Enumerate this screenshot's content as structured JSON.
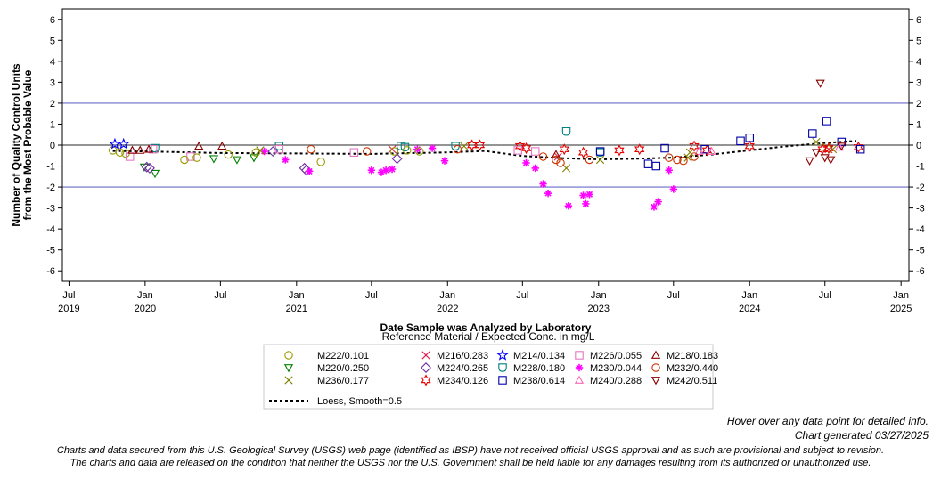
{
  "chart_data": {
    "type": "scatter",
    "xlabel": "Date Sample was Analyzed by Laboratory",
    "ylabel_lines": [
      "Number of Quality Control Units",
      "from the Most Probable Value"
    ],
    "ylim": [
      -6.5,
      6.5
    ],
    "xlim": [
      "2019-06-15",
      "2025-01-20"
    ],
    "yticks": [
      6,
      5,
      4,
      3,
      2,
      1,
      0,
      -1,
      -2,
      -3,
      -4,
      -5,
      -6
    ],
    "xticks": [
      {
        "date": "2019-07-01",
        "line1": "Jul",
        "line2": "2019"
      },
      {
        "date": "2020-01-01",
        "line1": "Jan",
        "line2": "2020"
      },
      {
        "date": "2020-07-01",
        "line1": "Jul",
        "line2": ""
      },
      {
        "date": "2021-01-01",
        "line1": "Jan",
        "line2": "2021"
      },
      {
        "date": "2021-07-01",
        "line1": "Jul",
        "line2": ""
      },
      {
        "date": "2022-01-01",
        "line1": "Jan",
        "line2": "2022"
      },
      {
        "date": "2022-07-01",
        "line1": "Jul",
        "line2": ""
      },
      {
        "date": "2023-01-01",
        "line1": "Jan",
        "line2": "2023"
      },
      {
        "date": "2023-07-01",
        "line1": "Jul",
        "line2": ""
      },
      {
        "date": "2024-01-01",
        "line1": "Jan",
        "line2": "2024"
      },
      {
        "date": "2024-07-01",
        "line1": "Jul",
        "line2": ""
      },
      {
        "date": "2025-01-01",
        "line1": "Jan",
        "line2": "2025"
      }
    ],
    "reference_lines": [
      2,
      0,
      -2
    ],
    "legend_title": "Reference Material / Expected Conc. in mg/L",
    "series": [
      {
        "name": "M222/0.101",
        "marker": "circle",
        "color": "#9a9a00",
        "points": [
          [
            "2019-10-15",
            -0.25
          ],
          [
            "2019-11-01",
            -0.35
          ],
          [
            "2019-11-15",
            -0.4
          ]
        ]
      },
      {
        "name": "M220/0.250",
        "marker": "triangle-down",
        "color": "#008000",
        "points": [
          [
            "2019-12-30",
            -1.05
          ],
          [
            "2020-01-25",
            -1.35
          ],
          [
            "2020-06-15",
            -0.65
          ],
          [
            "2020-08-10",
            -0.7
          ],
          [
            "2020-09-20",
            -0.6
          ]
        ]
      },
      {
        "name": "M236/0.177",
        "marker": "x",
        "color": "#808000",
        "points": [
          [
            "2022-10-15",
            -1.1
          ],
          [
            "2023-01-05",
            -0.7
          ],
          [
            "2023-08-05",
            -0.6
          ],
          [
            "2024-06-10",
            0.15
          ],
          [
            "2024-07-05",
            -0.1
          ]
        ]
      },
      {
        "name": "M216/0.283",
        "marker": "x",
        "color": "#e6194b",
        "points": [
          [
            "2021-08-20",
            -0.2
          ],
          [
            "2022-09-25",
            -0.55
          ],
          [
            "2024-07-10",
            -0.2
          ]
        ]
      },
      {
        "name": "M224/0.265",
        "marker": "diamond",
        "color": "#7030a0",
        "points": [
          [
            "2020-01-05",
            -1.05
          ],
          [
            "2020-01-12",
            -1.1
          ],
          [
            "2020-11-05",
            -0.3
          ],
          [
            "2021-01-20",
            -1.1
          ],
          [
            "2021-01-25",
            -1.2
          ],
          [
            "2021-09-01",
            -0.65
          ]
        ]
      },
      {
        "name": "M234/0.126",
        "marker": "star6",
        "color": "#e60000",
        "points": [
          [
            "2022-03-01",
            0.0
          ],
          [
            "2022-03-20",
            0.0
          ],
          [
            "2022-06-25",
            -0.05
          ],
          [
            "2022-07-10",
            -0.15
          ],
          [
            "2022-10-10",
            -0.2
          ],
          [
            "2022-11-25",
            -0.35
          ],
          [
            "2023-02-20",
            -0.25
          ],
          [
            "2023-04-10",
            -0.2
          ],
          [
            "2023-08-20",
            -0.05
          ],
          [
            "2023-09-20",
            -0.25
          ],
          [
            "2024-01-01",
            -0.05
          ],
          [
            "2024-06-25",
            -0.2
          ],
          [
            "2024-07-10",
            -0.15
          ],
          [
            "2024-09-20",
            -0.1
          ]
        ]
      },
      {
        "name": "M214/0.134",
        "marker": "star5",
        "color": "#0000ff",
        "points": [
          [
            "2019-10-20",
            0.05
          ],
          [
            "2019-11-10",
            0.05
          ]
        ]
      },
      {
        "name": "M228/0.180",
        "marker": "shield",
        "color": "#008080",
        "points": [
          [
            "2020-01-25",
            -0.15
          ],
          [
            "2020-11-20",
            -0.05
          ],
          [
            "2021-09-10",
            -0.05
          ],
          [
            "2021-09-20",
            -0.1
          ],
          [
            "2022-01-20",
            -0.05
          ],
          [
            "2022-10-15",
            0.65
          ],
          [
            "2023-01-05",
            -0.35
          ]
        ]
      },
      {
        "name": "M238/0.614",
        "marker": "square",
        "color": "#0000aa",
        "points": [
          [
            "2023-01-05",
            -0.3
          ],
          [
            "2023-05-01",
            -0.9
          ],
          [
            "2023-05-20",
            -1.0
          ],
          [
            "2023-06-10",
            -0.15
          ],
          [
            "2023-09-15",
            -0.2
          ],
          [
            "2023-12-10",
            0.2
          ],
          [
            "2024-01-01",
            0.35
          ],
          [
            "2024-06-01",
            0.55
          ],
          [
            "2024-07-05",
            1.15
          ],
          [
            "2024-08-10",
            0.15
          ],
          [
            "2024-09-25",
            -0.2
          ]
        ]
      },
      {
        "name": "M226/0.055",
        "marker": "square",
        "color": "#e377c2",
        "points": [
          [
            "2019-11-25",
            -0.55
          ],
          [
            "2020-01-20",
            -0.2
          ],
          [
            "2020-04-20",
            -0.55
          ],
          [
            "2020-11-20",
            -0.2
          ],
          [
            "2021-05-20",
            -0.35
          ],
          [
            "2022-06-20",
            -0.25
          ],
          [
            "2022-08-01",
            -0.3
          ]
        ]
      },
      {
        "name": "M230/0.044",
        "marker": "asterisk",
        "color": "#ff00ff",
        "points": [
          [
            "2020-10-15",
            -0.3
          ],
          [
            "2020-12-05",
            -0.7
          ],
          [
            "2021-02-01",
            -1.25
          ],
          [
            "2021-07-01",
            -1.2
          ],
          [
            "2021-07-25",
            -1.3
          ],
          [
            "2021-08-05",
            -1.2
          ],
          [
            "2021-08-20",
            -1.15
          ],
          [
            "2021-10-20",
            -0.2
          ],
          [
            "2021-11-25",
            -0.15
          ],
          [
            "2021-12-25",
            -0.75
          ],
          [
            "2022-07-10",
            -0.85
          ],
          [
            "2022-08-01",
            -1.1
          ],
          [
            "2022-08-20",
            -1.85
          ],
          [
            "2022-09-01",
            -2.3
          ],
          [
            "2022-10-20",
            -2.9
          ],
          [
            "2022-11-25",
            -2.4
          ],
          [
            "2022-12-01",
            -2.8
          ],
          [
            "2022-12-10",
            -2.35
          ],
          [
            "2023-05-15",
            -2.95
          ],
          [
            "2023-05-25",
            -2.7
          ],
          [
            "2023-06-20",
            -1.2
          ],
          [
            "2023-07-01",
            -2.1
          ]
        ]
      },
      {
        "name": "M240/0.288",
        "marker": "triangle",
        "color": "#ff69b4",
        "points": [
          [
            "2023-09-01",
            -0.3
          ],
          [
            "2023-10-01",
            -0.3
          ],
          [
            "2024-08-05",
            -0.1
          ]
        ]
      },
      {
        "name": "M218/0.183",
        "marker": "triangle",
        "color": "#8b0000",
        "points": [
          [
            "2019-12-01",
            -0.25
          ],
          [
            "2019-12-20",
            -0.25
          ],
          [
            "2020-01-10",
            -0.2
          ],
          [
            "2020-05-10",
            -0.05
          ],
          [
            "2020-07-05",
            -0.05
          ],
          [
            "2022-09-20",
            -0.45
          ]
        ]
      },
      {
        "name": "M232/0.440",
        "marker": "circle",
        "color": "#cc3300",
        "points": [
          [
            "2022-08-20",
            -0.55
          ],
          [
            "2022-09-20",
            -0.7
          ],
          [
            "2022-10-01",
            -0.85
          ],
          [
            "2022-12-10",
            -0.7
          ],
          [
            "2023-06-20",
            -0.6
          ],
          [
            "2023-07-10",
            -0.7
          ],
          [
            "2023-07-25",
            -0.75
          ],
          [
            "2023-08-20",
            -0.55
          ]
        ]
      },
      {
        "name": "M242/0.511",
        "marker": "triangle-down",
        "color": "#8b0000",
        "points": [
          [
            "2024-05-25",
            -0.75
          ],
          [
            "2024-06-10",
            -0.35
          ],
          [
            "2024-06-20",
            2.95
          ],
          [
            "2024-07-01",
            -0.6
          ],
          [
            "2024-07-15",
            -0.7
          ],
          [
            "2024-08-10",
            -0.05
          ]
        ]
      }
    ],
    "mixed_points": [
      {
        "date": "2020-04-05",
        "y": -0.7,
        "marker": "circle",
        "color": "#9a9a00"
      },
      {
        "date": "2020-05-05",
        "y": -0.6,
        "marker": "circle",
        "color": "#9a9a00"
      },
      {
        "date": "2020-07-20",
        "y": -0.45,
        "marker": "circle",
        "color": "#9a9a00"
      },
      {
        "date": "2020-09-25",
        "y": -0.35,
        "marker": "circle",
        "color": "#9a9a00"
      },
      {
        "date": "2021-03-01",
        "y": -0.8,
        "marker": "circle",
        "color": "#9a9a00"
      },
      {
        "date": "2021-08-25",
        "y": -0.3,
        "marker": "circle",
        "color": "#9a9a00"
      },
      {
        "date": "2021-09-25",
        "y": -0.25,
        "marker": "circle",
        "color": "#9a9a00"
      },
      {
        "date": "2021-10-25",
        "y": -0.3,
        "marker": "circle",
        "color": "#9a9a00"
      },
      {
        "date": "2021-02-05",
        "y": -0.2,
        "marker": "circle",
        "color": "#cc3300"
      },
      {
        "date": "2021-06-20",
        "y": -0.3,
        "marker": "circle",
        "color": "#cc3300"
      },
      {
        "date": "2022-01-25",
        "y": -0.2,
        "marker": "circle",
        "color": "#cc3300"
      },
      {
        "date": "2020-10-05",
        "y": -0.25,
        "marker": "x",
        "color": "#808000"
      },
      {
        "date": "2022-02-10",
        "y": -0.05,
        "marker": "x",
        "color": "#808000"
      },
      {
        "date": "2023-08-10",
        "y": -0.35,
        "marker": "x",
        "color": "#808000"
      },
      {
        "date": "2024-07-20",
        "y": -0.2,
        "marker": "x",
        "color": "#808000"
      }
    ],
    "loess": {
      "name": "Loess, Smooth=0.5",
      "points": [
        [
          "2019-10-15",
          -0.28
        ],
        [
          "2020-01-01",
          -0.3
        ],
        [
          "2020-07-01",
          -0.38
        ],
        [
          "2021-01-01",
          -0.4
        ],
        [
          "2021-07-01",
          -0.42
        ],
        [
          "2022-01-01",
          -0.35
        ],
        [
          "2022-04-01",
          -0.28
        ],
        [
          "2022-07-01",
          -0.52
        ],
        [
          "2022-10-01",
          -0.62
        ],
        [
          "2023-01-01",
          -0.68
        ],
        [
          "2023-04-01",
          -0.65
        ],
        [
          "2023-07-01",
          -0.6
        ],
        [
          "2023-10-01",
          -0.45
        ],
        [
          "2024-01-01",
          -0.25
        ],
        [
          "2024-04-01",
          -0.05
        ],
        [
          "2024-07-01",
          0.1
        ],
        [
          "2024-09-15",
          0.2
        ]
      ]
    }
  },
  "notes": {
    "hover": "Hover over any data point for detailed info.",
    "generated": "Chart generated 03/27/2025",
    "disclaimer1": "Charts and data secured from this U.S. Geological Survey (USGS) web page (identified as IBSP) have not received official USGS approval and as such are provisional and subject to revision.",
    "disclaimer2": "The charts and data are released on the condition that neither the USGS nor the U.S. Government shall be held liable for any damages resulting from its authorized or unauthorized use."
  }
}
